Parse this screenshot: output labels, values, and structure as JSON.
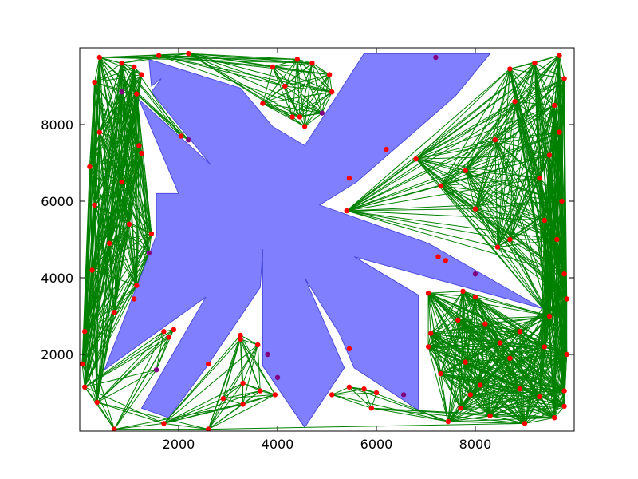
{
  "chart_data": {
    "type": "scatter",
    "title": "",
    "xlabel": "",
    "ylabel": "",
    "xlim": [
      0,
      10000
    ],
    "ylim": [
      0,
      10000
    ],
    "grid": false,
    "xticks": [
      2000,
      4000,
      6000,
      8000
    ],
    "yticks": [
      2000,
      4000,
      6000,
      8000
    ],
    "xtick_labels": [
      "2000",
      "4000",
      "6000",
      "8000"
    ],
    "ytick_labels": [
      "2000",
      "4000",
      "6000",
      "8000"
    ],
    "obstacle": {
      "color": "#8080ff",
      "edge_color": "#4b4bdc",
      "polygon": [
        [
          4550,
          7450
        ],
        [
          5750,
          9850
        ],
        [
          8300,
          9850
        ],
        [
          7600,
          8750
        ],
        [
          5600,
          6500
        ],
        [
          4850,
          5900
        ],
        [
          7050,
          4900
        ],
        [
          9350,
          3200
        ],
        [
          7950,
          3700
        ],
        [
          5550,
          4550
        ],
        [
          6850,
          3550
        ],
        [
          6850,
          550
        ],
        [
          5550,
          1650
        ],
        [
          5250,
          2550
        ],
        [
          4550,
          4000
        ],
        [
          5350,
          1650
        ],
        [
          4550,
          100
        ],
        [
          3700,
          1700
        ],
        [
          3700,
          4750
        ],
        [
          3650,
          3750
        ],
        [
          2550,
          1650
        ],
        [
          1800,
          350
        ],
        [
          1250,
          600
        ],
        [
          2550,
          3500
        ],
        [
          500,
          1600
        ],
        [
          1550,
          5100
        ],
        [
          1550,
          5900
        ],
        [
          1550,
          6200
        ],
        [
          2000,
          6200
        ],
        [
          1200,
          8650
        ],
        [
          2650,
          6950
        ],
        [
          1450,
          8850
        ],
        [
          1650,
          9200
        ],
        [
          1450,
          9000
        ],
        [
          1400,
          9700
        ],
        [
          3250,
          8950
        ],
        [
          3900,
          7950
        ]
      ]
    },
    "edge_color": "#008000",
    "point_colors": {
      "red": "#ff0000",
      "purple": "#800080"
    },
    "points": [
      {
        "x": 400,
        "y": 9750,
        "c": "red"
      },
      {
        "x": 850,
        "y": 9600,
        "c": "red"
      },
      {
        "x": 1100,
        "y": 9500,
        "c": "red"
      },
      {
        "x": 1600,
        "y": 9800,
        "c": "red"
      },
      {
        "x": 2200,
        "y": 9850,
        "c": "red"
      },
      {
        "x": 1150,
        "y": 8800,
        "c": "red"
      },
      {
        "x": 850,
        "y": 8850,
        "c": "purple"
      },
      {
        "x": 1250,
        "y": 9300,
        "c": "red"
      },
      {
        "x": 300,
        "y": 9100,
        "c": "red"
      },
      {
        "x": 2050,
        "y": 7700,
        "c": "red"
      },
      {
        "x": 2200,
        "y": 7600,
        "c": "purple"
      },
      {
        "x": 3700,
        "y": 8550,
        "c": "red"
      },
      {
        "x": 4300,
        "y": 8200,
        "c": "red"
      },
      {
        "x": 4450,
        "y": 8200,
        "c": "red"
      },
      {
        "x": 4550,
        "y": 7950,
        "c": "red"
      },
      {
        "x": 4900,
        "y": 8300,
        "c": "purple"
      },
      {
        "x": 4400,
        "y": 9700,
        "c": "red"
      },
      {
        "x": 4700,
        "y": 9600,
        "c": "red"
      },
      {
        "x": 5050,
        "y": 9300,
        "c": "red"
      },
      {
        "x": 5100,
        "y": 8850,
        "c": "red"
      },
      {
        "x": 3900,
        "y": 9500,
        "c": "red"
      },
      {
        "x": 4150,
        "y": 9000,
        "c": "red"
      },
      {
        "x": 7200,
        "y": 9750,
        "c": "purple"
      },
      {
        "x": 9700,
        "y": 9800,
        "c": "red"
      },
      {
        "x": 9200,
        "y": 9600,
        "c": "red"
      },
      {
        "x": 8700,
        "y": 9450,
        "c": "red"
      },
      {
        "x": 9800,
        "y": 9200,
        "c": "red"
      },
      {
        "x": 9600,
        "y": 8500,
        "c": "red"
      },
      {
        "x": 9700,
        "y": 7800,
        "c": "red"
      },
      {
        "x": 9500,
        "y": 7200,
        "c": "red"
      },
      {
        "x": 9300,
        "y": 6600,
        "c": "red"
      },
      {
        "x": 9750,
        "y": 6000,
        "c": "red"
      },
      {
        "x": 9400,
        "y": 5500,
        "c": "red"
      },
      {
        "x": 9650,
        "y": 5000,
        "c": "red"
      },
      {
        "x": 9800,
        "y": 4100,
        "c": "red"
      },
      {
        "x": 9850,
        "y": 3450,
        "c": "red"
      },
      {
        "x": 8800,
        "y": 8600,
        "c": "red"
      },
      {
        "x": 8400,
        "y": 7600,
        "c": "red"
      },
      {
        "x": 7800,
        "y": 6800,
        "c": "red"
      },
      {
        "x": 6200,
        "y": 7350,
        "c": "red"
      },
      {
        "x": 6800,
        "y": 7100,
        "c": "red"
      },
      {
        "x": 7300,
        "y": 6400,
        "c": "red"
      },
      {
        "x": 8000,
        "y": 5800,
        "c": "red"
      },
      {
        "x": 8700,
        "y": 5000,
        "c": "red"
      },
      {
        "x": 7400,
        "y": 4450,
        "c": "red"
      },
      {
        "x": 7250,
        "y": 4550,
        "c": "red"
      },
      {
        "x": 8000,
        "y": 4100,
        "c": "purple"
      },
      {
        "x": 8450,
        "y": 4800,
        "c": "red"
      },
      {
        "x": 5450,
        "y": 6600,
        "c": "red"
      },
      {
        "x": 5400,
        "y": 5750,
        "c": "red"
      },
      {
        "x": 1200,
        "y": 7450,
        "c": "red"
      },
      {
        "x": 1250,
        "y": 7250,
        "c": "red"
      },
      {
        "x": 400,
        "y": 7800,
        "c": "red"
      },
      {
        "x": 200,
        "y": 6900,
        "c": "red"
      },
      {
        "x": 850,
        "y": 6500,
        "c": "red"
      },
      {
        "x": 300,
        "y": 5900,
        "c": "red"
      },
      {
        "x": 1000,
        "y": 5400,
        "c": "red"
      },
      {
        "x": 1450,
        "y": 5150,
        "c": "red"
      },
      {
        "x": 1400,
        "y": 4650,
        "c": "purple"
      },
      {
        "x": 600,
        "y": 4900,
        "c": "red"
      },
      {
        "x": 1150,
        "y": 3800,
        "c": "red"
      },
      {
        "x": 1100,
        "y": 3450,
        "c": "red"
      },
      {
        "x": 250,
        "y": 4200,
        "c": "red"
      },
      {
        "x": 700,
        "y": 3100,
        "c": "red"
      },
      {
        "x": 100,
        "y": 2600,
        "c": "red"
      },
      {
        "x": 50,
        "y": 1750,
        "c": "red"
      },
      {
        "x": 100,
        "y": 1150,
        "c": "red"
      },
      {
        "x": 350,
        "y": 750,
        "c": "red"
      },
      {
        "x": 700,
        "y": 50,
        "c": "red"
      },
      {
        "x": 1700,
        "y": 2600,
        "c": "red"
      },
      {
        "x": 1900,
        "y": 2650,
        "c": "red"
      },
      {
        "x": 1800,
        "y": 2450,
        "c": "red"
      },
      {
        "x": 1550,
        "y": 1600,
        "c": "purple"
      },
      {
        "x": 1700,
        "y": 200,
        "c": "red"
      },
      {
        "x": 2600,
        "y": 1750,
        "c": "red"
      },
      {
        "x": 2600,
        "y": 50,
        "c": "red"
      },
      {
        "x": 3250,
        "y": 2500,
        "c": "red"
      },
      {
        "x": 3250,
        "y": 2400,
        "c": "red"
      },
      {
        "x": 3600,
        "y": 2250,
        "c": "red"
      },
      {
        "x": 3800,
        "y": 2000,
        "c": "purple"
      },
      {
        "x": 3300,
        "y": 1250,
        "c": "red"
      },
      {
        "x": 3650,
        "y": 1050,
        "c": "red"
      },
      {
        "x": 4000,
        "y": 1400,
        "c": "purple"
      },
      {
        "x": 3950,
        "y": 950,
        "c": "red"
      },
      {
        "x": 3300,
        "y": 700,
        "c": "red"
      },
      {
        "x": 2900,
        "y": 850,
        "c": "red"
      },
      {
        "x": 5450,
        "y": 2150,
        "c": "red"
      },
      {
        "x": 5100,
        "y": 950,
        "c": "red"
      },
      {
        "x": 5450,
        "y": 1150,
        "c": "red"
      },
      {
        "x": 5750,
        "y": 1100,
        "c": "red"
      },
      {
        "x": 6000,
        "y": 1000,
        "c": "red"
      },
      {
        "x": 5900,
        "y": 600,
        "c": "red"
      },
      {
        "x": 6550,
        "y": 950,
        "c": "purple"
      },
      {
        "x": 7050,
        "y": 3600,
        "c": "red"
      },
      {
        "x": 7750,
        "y": 3650,
        "c": "red"
      },
      {
        "x": 8000,
        "y": 3500,
        "c": "red"
      },
      {
        "x": 7100,
        "y": 2550,
        "c": "red"
      },
      {
        "x": 7050,
        "y": 2200,
        "c": "red"
      },
      {
        "x": 7650,
        "y": 2900,
        "c": "red"
      },
      {
        "x": 8200,
        "y": 2800,
        "c": "red"
      },
      {
        "x": 8900,
        "y": 2600,
        "c": "red"
      },
      {
        "x": 9500,
        "y": 3000,
        "c": "red"
      },
      {
        "x": 9850,
        "y": 2000,
        "c": "red"
      },
      {
        "x": 9400,
        "y": 2200,
        "c": "red"
      },
      {
        "x": 8700,
        "y": 1900,
        "c": "red"
      },
      {
        "x": 7800,
        "y": 1800,
        "c": "red"
      },
      {
        "x": 7300,
        "y": 1500,
        "c": "red"
      },
      {
        "x": 8100,
        "y": 1200,
        "c": "red"
      },
      {
        "x": 8900,
        "y": 1100,
        "c": "red"
      },
      {
        "x": 9300,
        "y": 900,
        "c": "red"
      },
      {
        "x": 9800,
        "y": 1050,
        "c": "red"
      },
      {
        "x": 9800,
        "y": 650,
        "c": "red"
      },
      {
        "x": 9600,
        "y": 350,
        "c": "red"
      },
      {
        "x": 9000,
        "y": 200,
        "c": "red"
      },
      {
        "x": 8300,
        "y": 400,
        "c": "red"
      },
      {
        "x": 7700,
        "y": 600,
        "c": "red"
      },
      {
        "x": 7450,
        "y": 250,
        "c": "red"
      },
      {
        "x": 7900,
        "y": 950,
        "c": "red"
      },
      {
        "x": 8500,
        "y": 2300,
        "c": "red"
      }
    ]
  }
}
